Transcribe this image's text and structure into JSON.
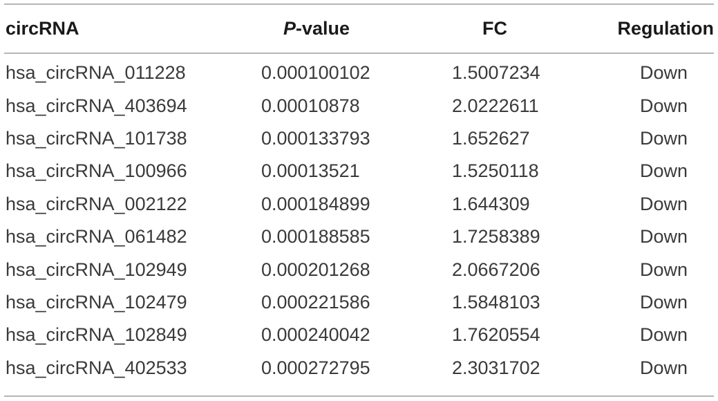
{
  "table": {
    "headers": {
      "circrna": "circRNA",
      "p_prefix": "P",
      "p_suffix": "-value",
      "fc": "FC",
      "regulation": "Regulation"
    },
    "rows": [
      {
        "circrna": "hsa_circRNA_011228",
        "p_value": "0.000100102",
        "fc": "1.5007234",
        "regulation": "Down"
      },
      {
        "circrna": "hsa_circRNA_403694",
        "p_value": "0.00010878",
        "fc": "2.0222611",
        "regulation": "Down"
      },
      {
        "circrna": "hsa_circRNA_101738",
        "p_value": "0.000133793",
        "fc": "1.652627",
        "regulation": "Down"
      },
      {
        "circrna": "hsa_circRNA_100966",
        "p_value": "0.00013521",
        "fc": "1.5250118",
        "regulation": "Down"
      },
      {
        "circrna": "hsa_circRNA_002122",
        "p_value": "0.000184899",
        "fc": "1.644309",
        "regulation": "Down"
      },
      {
        "circrna": "hsa_circRNA_061482",
        "p_value": "0.000188585",
        "fc": "1.7258389",
        "regulation": "Down"
      },
      {
        "circrna": "hsa_circRNA_102949",
        "p_value": "0.000201268",
        "fc": "2.0667206",
        "regulation": "Down"
      },
      {
        "circrna": "hsa_circRNA_102479",
        "p_value": "0.000221586",
        "fc": "1.5848103",
        "regulation": "Down"
      },
      {
        "circrna": "hsa_circRNA_102849",
        "p_value": "0.000240042",
        "fc": "1.7620554",
        "regulation": "Down"
      },
      {
        "circrna": "hsa_circRNA_402533",
        "p_value": "0.000272795",
        "fc": "2.3031702",
        "regulation": "Down"
      }
    ]
  }
}
